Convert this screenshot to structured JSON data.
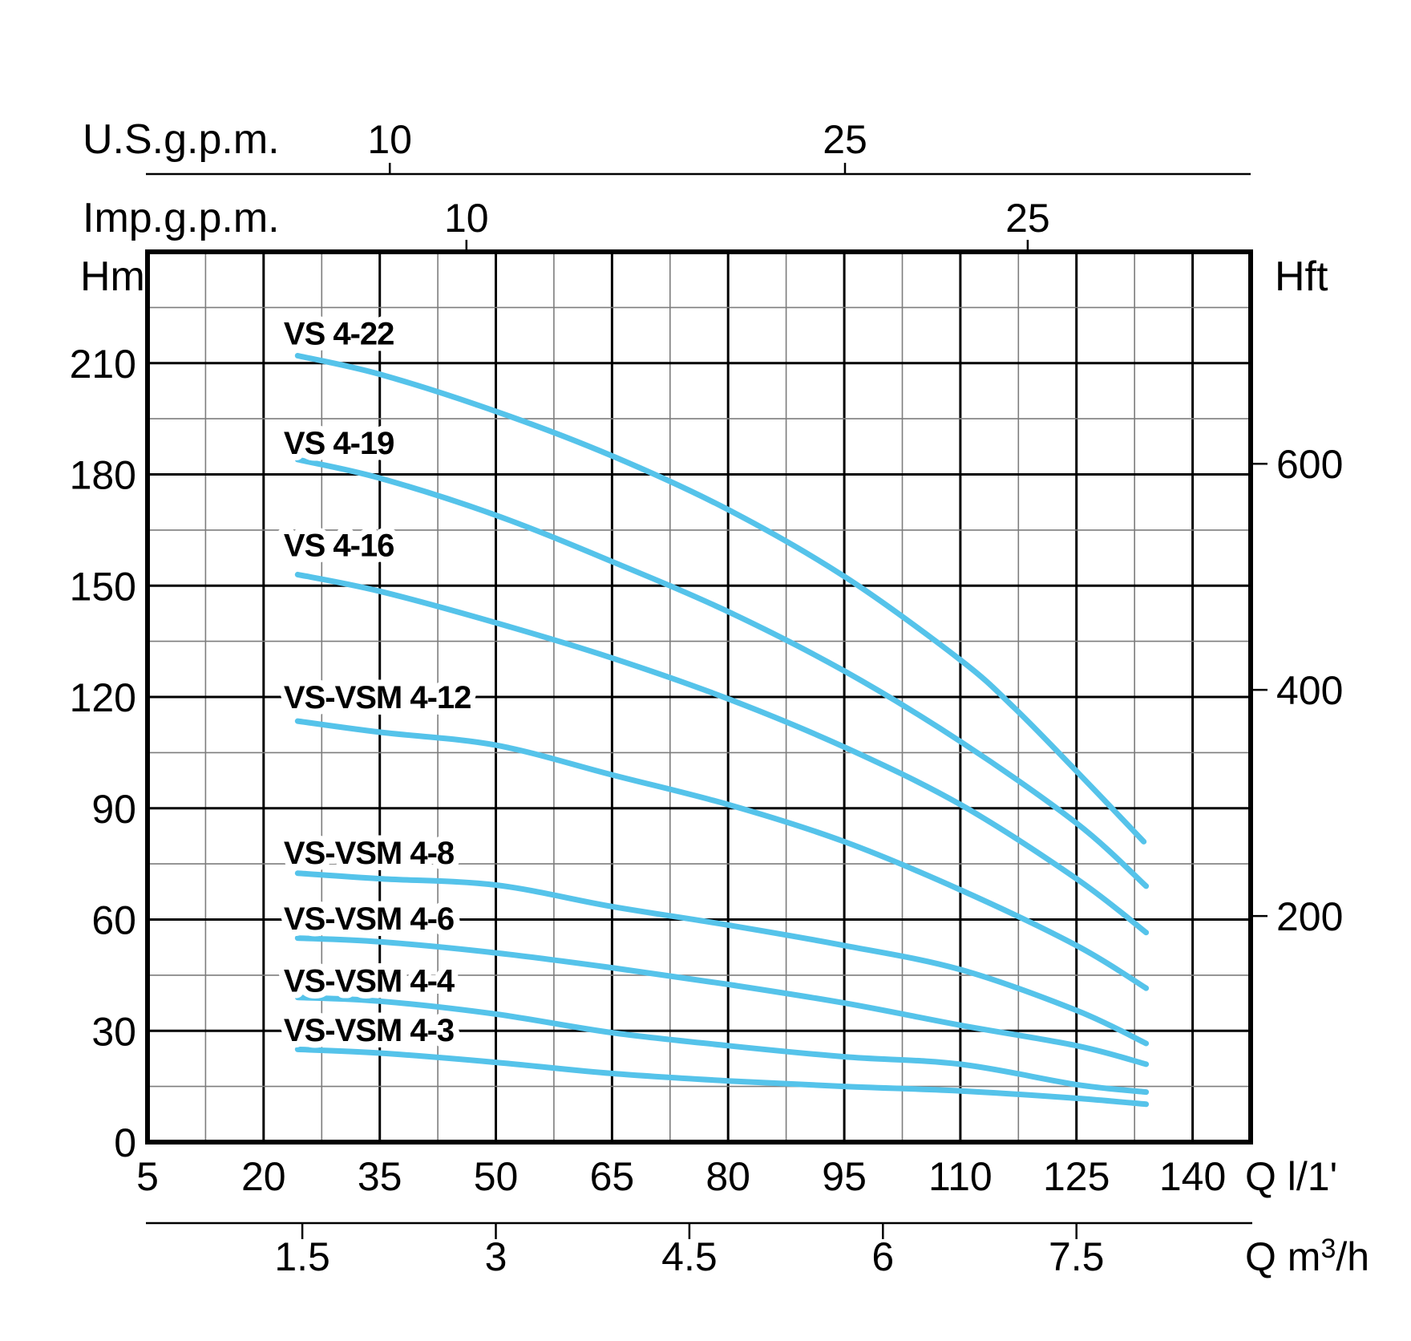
{
  "colors": {
    "background": "#ffffff",
    "curve": "#55c3ea",
    "grid_dark": "#000000",
    "grid_light": "#7d7d7d",
    "border": "#000000",
    "text": "#000000"
  },
  "chart_data": {
    "type": "line",
    "x_axis_primary": {
      "unit_label": "Q l/1'",
      "unit": "l/1'",
      "range": [
        5,
        147.5
      ],
      "grid_step": 7.5,
      "tick_values": [
        5,
        20,
        35,
        50,
        65,
        80,
        95,
        110,
        125,
        140
      ]
    },
    "x_axis_m3h": {
      "unit_prefix": "Q m",
      "unit_sup": "3",
      "unit_suffix": "/h",
      "ticks": [
        {
          "value": "1.5",
          "l_per_min": 25
        },
        {
          "value": "3",
          "l_per_min": 50
        },
        {
          "value": "4.5",
          "l_per_min": 75
        },
        {
          "value": "6",
          "l_per_min": 100
        },
        {
          "value": "7.5",
          "l_per_min": 125
        }
      ]
    },
    "x_axis_us_gpm": {
      "label": "U.S.g.p.m.",
      "ticks": [
        {
          "value": "10",
          "l_per_min": 36.3
        },
        {
          "value": "25",
          "l_per_min": 95.1
        }
      ]
    },
    "x_axis_imp_gpm": {
      "label": "Imp.g.p.m.",
      "ticks": [
        {
          "value": "10",
          "l_per_min": 46.2
        },
        {
          "value": "25",
          "l_per_min": 118.7
        }
      ]
    },
    "y_axis_left": {
      "label": "Hm",
      "unit": "m",
      "range": [
        0,
        240
      ],
      "grid_step": 15,
      "tick_values": [
        0,
        30,
        60,
        90,
        120,
        150,
        180,
        210
      ]
    },
    "y_axis_right": {
      "label": "Hft",
      "unit": "ft",
      "ticks": [
        {
          "value": "200",
          "m": 60.96
        },
        {
          "value": "400",
          "m": 121.92
        },
        {
          "value": "600",
          "m": 182.88
        }
      ]
    },
    "series": [
      {
        "name": "VS 4-22",
        "label_q": 22.6,
        "label_h": 215,
        "points": [
          [
            24.4,
            212
          ],
          [
            35,
            207
          ],
          [
            50,
            197
          ],
          [
            65,
            185
          ],
          [
            80,
            170.5
          ],
          [
            95,
            152.5
          ],
          [
            110,
            130
          ],
          [
            117,
            117
          ],
          [
            125,
            100
          ],
          [
            133.7,
            81
          ]
        ]
      },
      {
        "name": "VS 4-19",
        "label_q": 22.6,
        "label_h": 185.5,
        "points": [
          [
            24.4,
            184
          ],
          [
            35,
            179
          ],
          [
            50,
            169
          ],
          [
            65,
            156.5
          ],
          [
            80,
            143
          ],
          [
            95,
            127
          ],
          [
            110,
            108
          ],
          [
            125,
            86
          ],
          [
            134,
            69
          ]
        ]
      },
      {
        "name": "VS 4-16",
        "label_q": 22.6,
        "label_h": 158,
        "points": [
          [
            24.4,
            153
          ],
          [
            35,
            148.5
          ],
          [
            50,
            140
          ],
          [
            65,
            130.5
          ],
          [
            80,
            119.5
          ],
          [
            95,
            106.5
          ],
          [
            110,
            91
          ],
          [
            125,
            71
          ],
          [
            134,
            56.5
          ]
        ]
      },
      {
        "name": "VS-VSM 4-12",
        "label_q": 22.6,
        "label_h": 117,
        "points": [
          [
            24.4,
            113.5
          ],
          [
            35,
            110.5
          ],
          [
            50,
            107
          ],
          [
            65,
            99
          ],
          [
            80,
            91
          ],
          [
            95,
            81
          ],
          [
            110,
            68
          ],
          [
            125,
            53
          ],
          [
            134,
            41.5
          ]
        ]
      },
      {
        "name": "VS-VSM 4-8",
        "label_q": 22.6,
        "label_h": 75,
        "points": [
          [
            24.4,
            72.5
          ],
          [
            35,
            71
          ],
          [
            50,
            69.3
          ],
          [
            65,
            63.5
          ],
          [
            80,
            58.5
          ],
          [
            95,
            53
          ],
          [
            110,
            46.5
          ],
          [
            125,
            35.5
          ],
          [
            134,
            26.6
          ]
        ]
      },
      {
        "name": "VS-VSM 4-6",
        "label_q": 22.6,
        "label_h": 57.3,
        "points": [
          [
            24.4,
            55
          ],
          [
            35,
            54
          ],
          [
            50,
            51
          ],
          [
            65,
            47
          ],
          [
            80,
            42.5
          ],
          [
            95,
            37.5
          ],
          [
            110,
            31.5
          ],
          [
            125,
            26
          ],
          [
            134,
            21
          ]
        ]
      },
      {
        "name": "VS-VSM 4-4",
        "label_q": 22.6,
        "label_h": 40.5,
        "points": [
          [
            24.4,
            39
          ],
          [
            35,
            38
          ],
          [
            50,
            34.5
          ],
          [
            65,
            29.5
          ],
          [
            80,
            26
          ],
          [
            95,
            23
          ],
          [
            110,
            21
          ],
          [
            125,
            15.5
          ],
          [
            134,
            13.5
          ]
        ]
      },
      {
        "name": "VS-VSM 4-3",
        "label_q": 22.6,
        "label_h": 27.2,
        "points": [
          [
            24.4,
            25
          ],
          [
            35,
            24
          ],
          [
            50,
            21.5
          ],
          [
            65,
            18.5
          ],
          [
            80,
            16.5
          ],
          [
            95,
            15
          ],
          [
            110,
            13.8
          ],
          [
            125,
            11.8
          ],
          [
            134,
            10.2
          ]
        ]
      }
    ]
  }
}
